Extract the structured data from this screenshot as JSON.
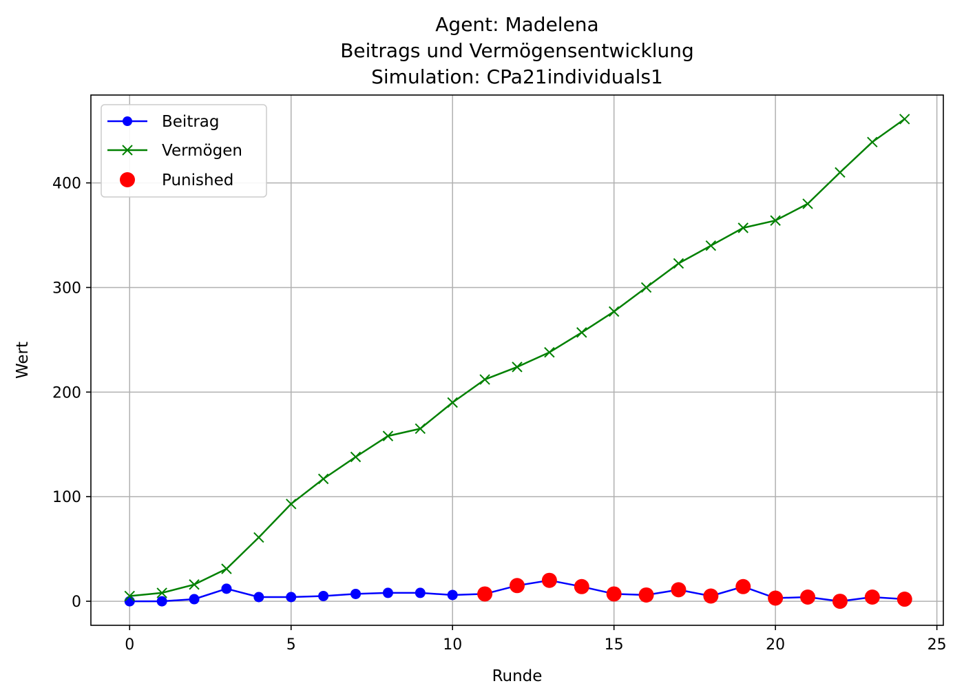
{
  "chart_data": {
    "type": "line",
    "title_lines": [
      "Agent: Madelena",
      "Beitrags und Vermögensentwicklung",
      "Simulation: CPa21individuals1"
    ],
    "xlabel": "Runde",
    "ylabel": "Wert",
    "xlim": [
      -1.2,
      25.2
    ],
    "ylim": [
      -23,
      484
    ],
    "xticks": [
      0,
      5,
      10,
      15,
      20,
      25
    ],
    "yticks": [
      0,
      100,
      200,
      300,
      400
    ],
    "grid": true,
    "legend_position": "upper-left",
    "x": [
      0,
      1,
      2,
      3,
      4,
      5,
      6,
      7,
      8,
      9,
      10,
      11,
      12,
      13,
      14,
      15,
      16,
      17,
      18,
      19,
      20,
      21,
      22,
      23,
      24
    ],
    "series": [
      {
        "name": "Beitrag",
        "color": "#0000ff",
        "marker": "circle",
        "values": [
          0,
          0,
          2,
          12,
          4,
          4,
          5,
          7,
          8,
          8,
          6,
          7,
          15,
          20,
          14,
          7,
          6,
          11,
          5,
          14,
          3,
          4,
          0,
          4,
          2
        ]
      },
      {
        "name": "Vermögen",
        "color": "#008000",
        "marker": "x",
        "values": [
          5,
          8,
          16,
          31,
          61,
          93,
          117,
          138,
          158,
          165,
          190,
          212,
          224,
          238,
          257,
          277,
          300,
          323,
          340,
          357,
          364,
          380,
          410,
          439,
          461
        ]
      }
    ],
    "punished": {
      "name": "Punished",
      "color": "#ff0000",
      "x": [
        11,
        12,
        13,
        14,
        15,
        16,
        17,
        18,
        19,
        20,
        21,
        22,
        23,
        24
      ],
      "values": [
        7,
        15,
        20,
        14,
        7,
        6,
        11,
        5,
        14,
        3,
        4,
        0,
        4,
        2
      ]
    }
  }
}
